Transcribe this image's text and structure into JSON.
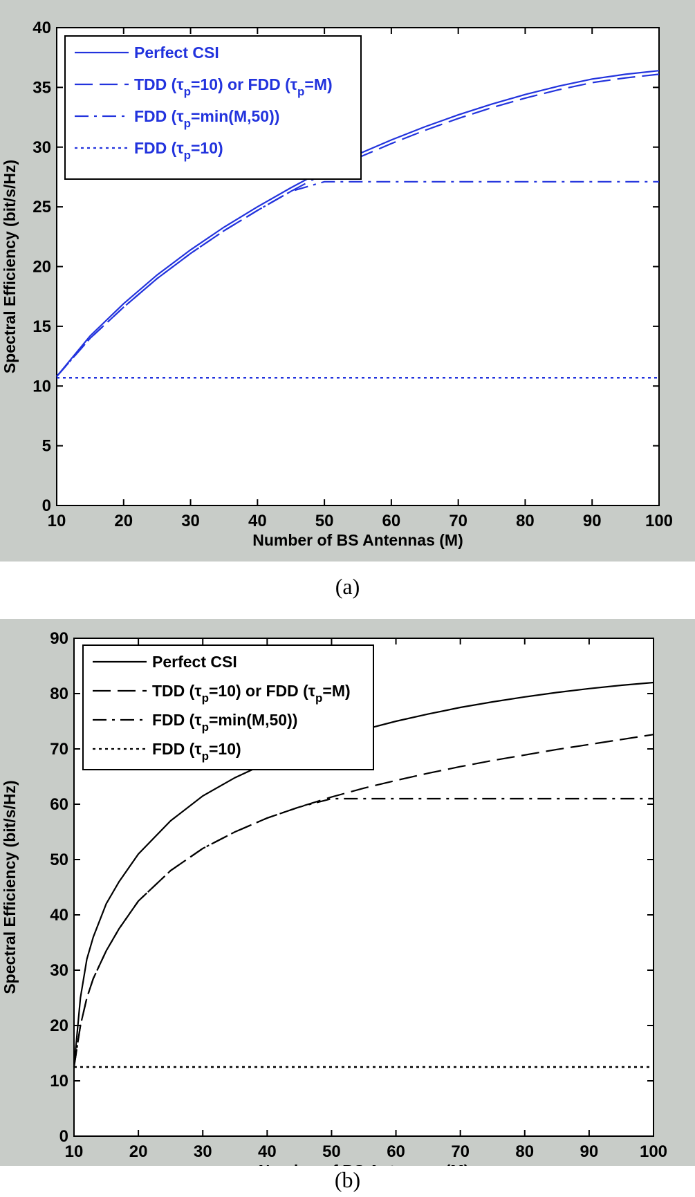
{
  "chart_data": [
    {
      "type": "line",
      "panel": "a",
      "caption": "(a)",
      "color": "#2233dd",
      "xlabel": "Number of BS Antennas (M)",
      "ylabel": "Spectral Efficiency (bit/s/Hz)",
      "xlim": [
        10,
        100
      ],
      "ylim": [
        0,
        40
      ],
      "xticks": [
        "10",
        "20",
        "30",
        "40",
        "50",
        "60",
        "70",
        "80",
        "90",
        "100"
      ],
      "yticks": [
        "0",
        "5",
        "10",
        "15",
        "20",
        "25",
        "30",
        "35",
        "40"
      ],
      "grid": false,
      "legend_position": "top-left",
      "x": [
        10,
        15,
        20,
        25,
        30,
        35,
        40,
        45,
        50,
        55,
        60,
        65,
        70,
        75,
        80,
        85,
        90,
        95,
        100
      ],
      "series": [
        {
          "name": "Perfect CSI",
          "legend": {
            "main": "Perfect CSI"
          },
          "style": "solid",
          "values": [
            10.8,
            14.2,
            16.9,
            19.3,
            21.4,
            23.3,
            25.0,
            26.6,
            28.1,
            29.4,
            30.6,
            31.7,
            32.7,
            33.6,
            34.4,
            35.1,
            35.7,
            36.1,
            36.4
          ]
        },
        {
          "name": "TDD (τp=10) or FDD (τp=M)",
          "legend": {
            "a": "TDD (τ",
            "sub1": "p",
            "b": "=10) or FDD (τ",
            "sub2": "p",
            "c": "=M)"
          },
          "style": "dashed",
          "values": [
            10.8,
            14.0,
            16.6,
            19.0,
            21.1,
            23.0,
            24.7,
            26.3,
            27.8,
            29.1,
            30.3,
            31.4,
            32.4,
            33.3,
            34.1,
            34.8,
            35.4,
            35.8,
            36.1
          ]
        },
        {
          "name": "FDD (τp=min(M,50))",
          "legend": {
            "a": "FDD (τ",
            "sub1": "p",
            "b": "=min(M,50))"
          },
          "style": "dashdot",
          "values": [
            10.8,
            14.0,
            16.6,
            19.0,
            21.1,
            23.0,
            24.7,
            26.3,
            27.1,
            27.1,
            27.1,
            27.1,
            27.1,
            27.1,
            27.1,
            27.1,
            27.1,
            27.1,
            27.1
          ]
        },
        {
          "name": "FDD (τp=10)",
          "legend": {
            "a": "FDD (τ",
            "sub1": "p",
            "b": "=10)"
          },
          "style": "dotted",
          "values": [
            10.7,
            10.7,
            10.7,
            10.7,
            10.7,
            10.7,
            10.7,
            10.7,
            10.7,
            10.7,
            10.7,
            10.7,
            10.7,
            10.7,
            10.7,
            10.7,
            10.7,
            10.7,
            10.7
          ]
        }
      ]
    },
    {
      "type": "line",
      "panel": "b",
      "caption": "(b)",
      "color": "#000000",
      "xlabel": "Number of BS Antennas (M)",
      "ylabel": "Spectral Efficiency (bit/s/Hz)",
      "xlim": [
        10,
        100
      ],
      "ylim": [
        0,
        90
      ],
      "xticks": [
        "10",
        "20",
        "30",
        "40",
        "50",
        "60",
        "70",
        "80",
        "90",
        "100"
      ],
      "yticks": [
        "0",
        "10",
        "20",
        "30",
        "40",
        "50",
        "60",
        "70",
        "80",
        "90"
      ],
      "grid": false,
      "legend_position": "top-left",
      "x": [
        10,
        11,
        12,
        13,
        15,
        17,
        20,
        25,
        30,
        35,
        40,
        45,
        50,
        55,
        60,
        65,
        70,
        75,
        80,
        85,
        90,
        95,
        100
      ],
      "series": [
        {
          "name": "Perfect CSI",
          "legend": {
            "main": "Perfect CSI"
          },
          "style": "solid",
          "values": [
            12.5,
            25,
            32,
            36,
            42,
            46,
            51,
            57,
            61.5,
            64.8,
            67.5,
            69.8,
            71.8,
            73.5,
            75.0,
            76.3,
            77.5,
            78.5,
            79.4,
            80.2,
            80.9,
            81.5,
            82.0
          ]
        },
        {
          "name": "TDD (τp=10) or FDD (τp=M)",
          "legend": {
            "a": "TDD (τ",
            "sub1": "p",
            "b": "=10) or FDD (τ",
            "sub2": "p",
            "c": "=M)"
          },
          "style": "dashed",
          "values": [
            12.5,
            20,
            25,
            28.5,
            33.5,
            37.5,
            42.5,
            48,
            52,
            55,
            57.5,
            59.5,
            61.3,
            62.9,
            64.3,
            65.6,
            66.8,
            67.9,
            68.9,
            69.9,
            70.8,
            71.7,
            72.6
          ]
        },
        {
          "name": "FDD (τp=min(M,50))",
          "legend": {
            "a": "FDD (τ",
            "sub1": "p",
            "b": "=min(M,50))"
          },
          "style": "dashdot",
          "values": [
            12.5,
            20,
            25,
            28.5,
            33.5,
            37.5,
            42.5,
            48,
            52,
            55,
            57.5,
            59.5,
            61,
            61,
            61,
            61,
            61,
            61,
            61,
            61,
            61,
            61,
            61
          ]
        },
        {
          "name": "FDD (τp=10)",
          "legend": {
            "a": "FDD (τ",
            "sub1": "p",
            "b": "=10)"
          },
          "style": "dotted",
          "values": [
            12.5,
            12.5,
            12.5,
            12.5,
            12.5,
            12.5,
            12.5,
            12.5,
            12.5,
            12.5,
            12.5,
            12.5,
            12.5,
            12.5,
            12.5,
            12.5,
            12.5,
            12.5,
            12.5,
            12.5,
            12.5,
            12.5,
            12.5
          ]
        }
      ]
    }
  ]
}
